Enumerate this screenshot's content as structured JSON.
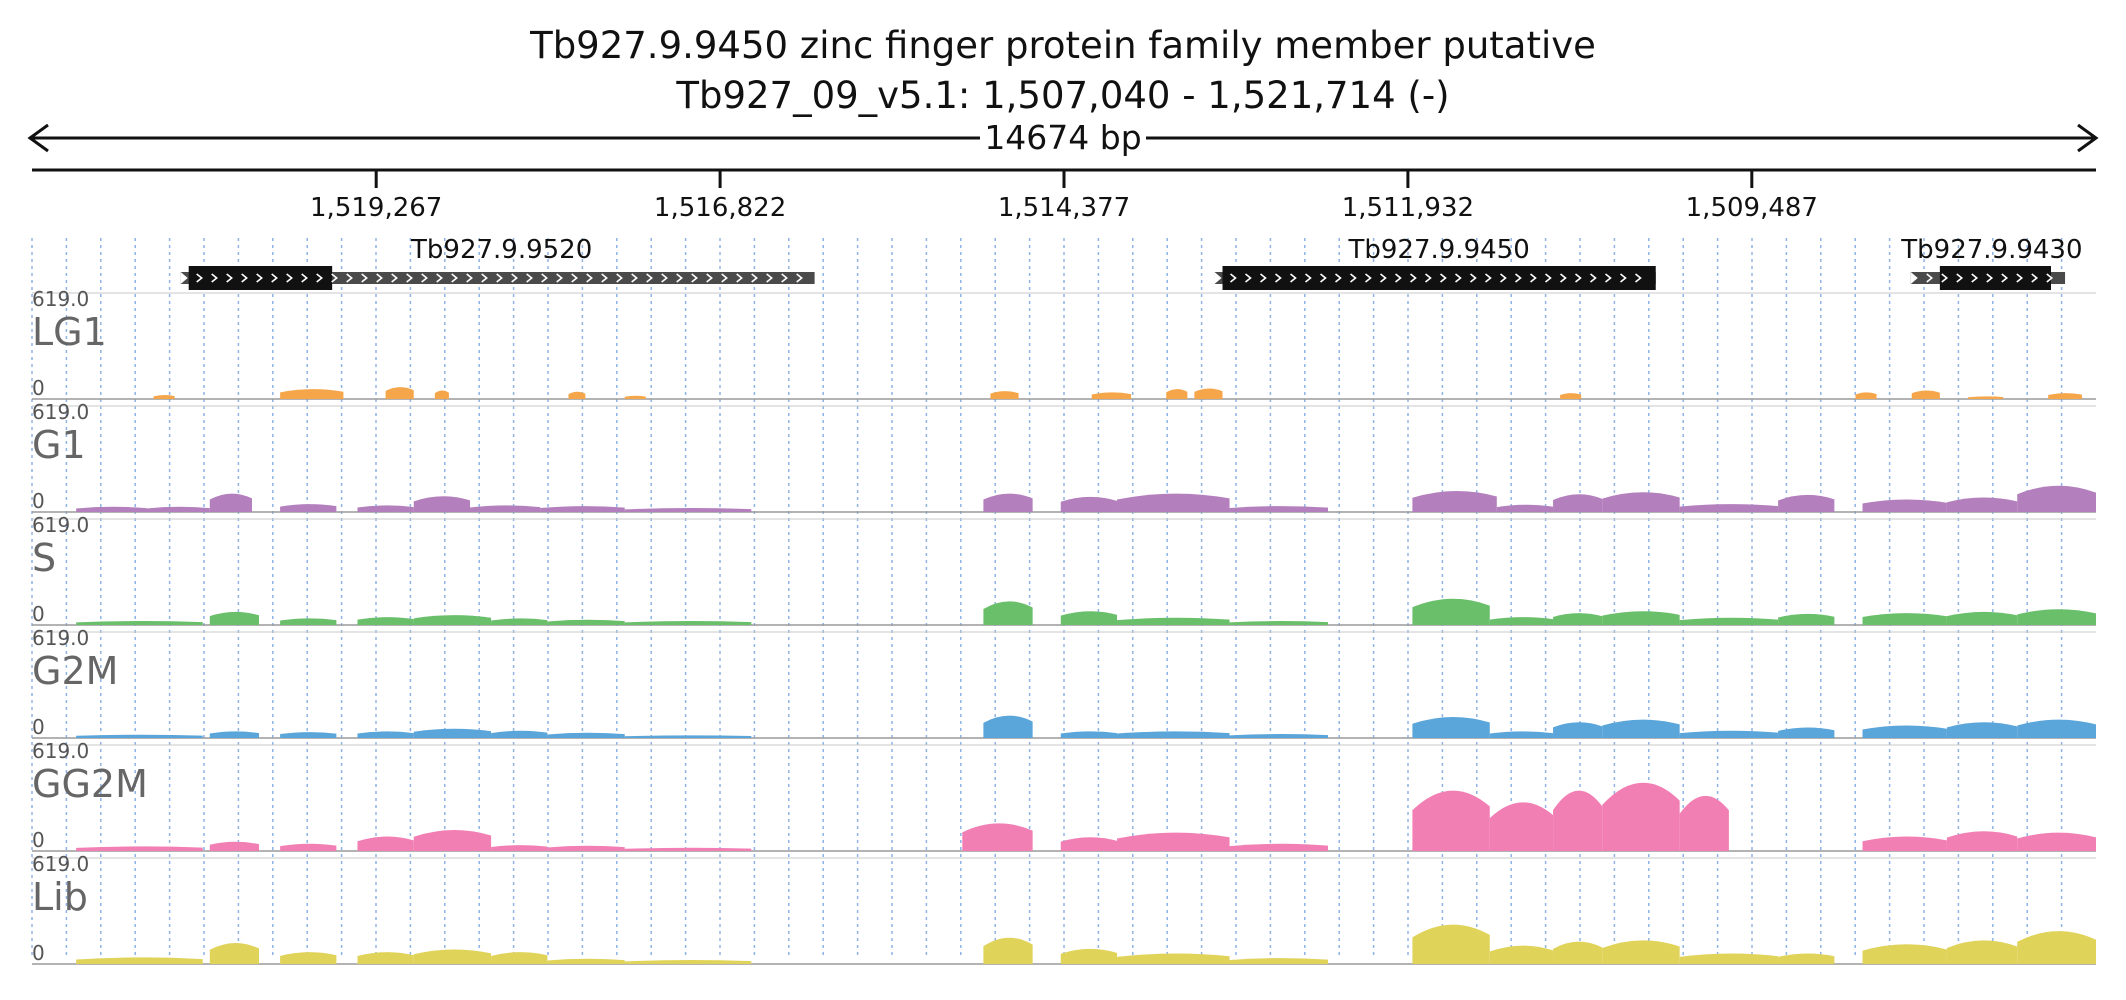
{
  "header": {
    "title_line1": "Tb927.9.9450  zinc finger protein family member  putative",
    "title_line2": "Tb927_09_v5.1: 1,507,040 - 1,521,714 (-)",
    "span_label": "14674 bp"
  },
  "chart_data": {
    "type": "area",
    "title": "Tb927.9.9450  zinc finger protein family member  putative",
    "subtitle": "Tb927_09_v5.1: 1,507,040 - 1,521,714 (-)",
    "region": {
      "chrom": "Tb927_09_v5.1",
      "start": 1507040,
      "end": 1521714,
      "strand": "-",
      "length_bp": 14674
    },
    "x_axis_reversed": true,
    "ruler_ticks": [
      "1,519,267",
      "1,516,822",
      "1,514,377",
      "1,511,932",
      "1,509,487"
    ],
    "ruler_tick_values": [
      1519267,
      1516822,
      1514377,
      1511932,
      1509487
    ],
    "genes": [
      {
        "name": "Tb927.9.9520",
        "start": 1520600,
        "end": 1516150,
        "cds_start": 1520600,
        "cds_end": 1519580
      },
      {
        "name": "Tb927.9.9450",
        "start": 1513250,
        "end": 1510170,
        "cds_start": 1513250,
        "cds_end": 1510170
      },
      {
        "name": "Tb927.9.9430",
        "start": 1508300,
        "end": 1507260,
        "cds_start": 1508150,
        "cds_end": 1507360
      }
    ],
    "y_range": [
      0,
      619.0
    ],
    "y_max_label": "619.0",
    "y_min_label": "0",
    "tracks": [
      {
        "name": "LG1",
        "color": "#f5a64a",
        "coverage": [
          [
            1520850,
            1520700,
            30
          ],
          [
            1519950,
            1519500,
            75
          ],
          [
            1519200,
            1519000,
            90
          ],
          [
            1518850,
            1518750,
            65
          ],
          [
            1517900,
            1517780,
            55
          ],
          [
            1517500,
            1517350,
            25
          ],
          [
            1514900,
            1514700,
            60
          ],
          [
            1514180,
            1513900,
            50
          ],
          [
            1513650,
            1513500,
            75
          ],
          [
            1513450,
            1513250,
            80
          ],
          [
            1510850,
            1510700,
            45
          ],
          [
            1508750,
            1508600,
            50
          ],
          [
            1508350,
            1508150,
            65
          ],
          [
            1507950,
            1507700,
            20
          ],
          [
            1507380,
            1507140,
            45
          ]
        ]
      },
      {
        "name": "G1",
        "color": "#b47fbd",
        "coverage": [
          [
            1521400,
            1520900,
            40
          ],
          [
            1520900,
            1520450,
            40
          ],
          [
            1520450,
            1520150,
            140
          ],
          [
            1519950,
            1519550,
            60
          ],
          [
            1519400,
            1519000,
            50
          ],
          [
            1519000,
            1518600,
            120
          ],
          [
            1518600,
            1518100,
            50
          ],
          [
            1518100,
            1517500,
            45
          ],
          [
            1517500,
            1516600,
            30
          ],
          [
            1514950,
            1514600,
            140
          ],
          [
            1514400,
            1514000,
            115
          ],
          [
            1514000,
            1513200,
            140
          ],
          [
            1513200,
            1512500,
            45
          ],
          [
            1511900,
            1511300,
            160
          ],
          [
            1511300,
            1510900,
            55
          ],
          [
            1510900,
            1510550,
            135
          ],
          [
            1510550,
            1510000,
            150
          ],
          [
            1510000,
            1509300,
            60
          ],
          [
            1509300,
            1508900,
            130
          ],
          [
            1508700,
            1508100,
            95
          ],
          [
            1508100,
            1507600,
            110
          ],
          [
            1507600,
            1507040,
            200
          ]
        ]
      },
      {
        "name": "S",
        "color": "#6abf6b",
        "coverage": [
          [
            1521400,
            1520500,
            30
          ],
          [
            1520450,
            1520100,
            100
          ],
          [
            1519950,
            1519550,
            50
          ],
          [
            1519400,
            1519000,
            60
          ],
          [
            1519000,
            1518450,
            75
          ],
          [
            1518450,
            1518050,
            50
          ],
          [
            1518050,
            1517500,
            40
          ],
          [
            1517500,
            1516600,
            30
          ],
          [
            1514950,
            1514600,
            180
          ],
          [
            1514400,
            1514000,
            105
          ],
          [
            1514000,
            1513200,
            55
          ],
          [
            1513200,
            1512500,
            30
          ],
          [
            1511900,
            1511350,
            200
          ],
          [
            1511350,
            1510900,
            60
          ],
          [
            1510900,
            1510550,
            90
          ],
          [
            1510550,
            1510000,
            105
          ],
          [
            1510000,
            1509300,
            55
          ],
          [
            1509300,
            1508900,
            85
          ],
          [
            1508700,
            1508100,
            90
          ],
          [
            1508100,
            1507600,
            100
          ],
          [
            1507600,
            1507040,
            120
          ]
        ]
      },
      {
        "name": "G2M",
        "color": "#5aa5da",
        "coverage": [
          [
            1521400,
            1520500,
            25
          ],
          [
            1520450,
            1520100,
            50
          ],
          [
            1519950,
            1519550,
            45
          ],
          [
            1519400,
            1519000,
            50
          ],
          [
            1519000,
            1518450,
            70
          ],
          [
            1518450,
            1518050,
            55
          ],
          [
            1518050,
            1517500,
            40
          ],
          [
            1517500,
            1516600,
            20
          ],
          [
            1514950,
            1514600,
            170
          ],
          [
            1514400,
            1514000,
            50
          ],
          [
            1514000,
            1513200,
            50
          ],
          [
            1513200,
            1512500,
            30
          ],
          [
            1511900,
            1511350,
            160
          ],
          [
            1511350,
            1510900,
            50
          ],
          [
            1510900,
            1510550,
            120
          ],
          [
            1510550,
            1510000,
            140
          ],
          [
            1510000,
            1509300,
            55
          ],
          [
            1509300,
            1508900,
            80
          ],
          [
            1508700,
            1508100,
            95
          ],
          [
            1508100,
            1507600,
            120
          ],
          [
            1507600,
            1507040,
            140
          ]
        ]
      },
      {
        "name": "GG2M",
        "color": "#f17fb4",
        "coverage": [
          [
            1521400,
            1520500,
            35
          ],
          [
            1520450,
            1520100,
            70
          ],
          [
            1519950,
            1519550,
            55
          ],
          [
            1519400,
            1519000,
            110
          ],
          [
            1519000,
            1518450,
            160
          ],
          [
            1518450,
            1518050,
            45
          ],
          [
            1518050,
            1517500,
            40
          ],
          [
            1517500,
            1516600,
            25
          ],
          [
            1515100,
            1514600,
            210
          ],
          [
            1514400,
            1514000,
            105
          ],
          [
            1514000,
            1513200,
            140
          ],
          [
            1513200,
            1512500,
            55
          ],
          [
            1511900,
            1511350,
            460
          ],
          [
            1511350,
            1510900,
            370
          ],
          [
            1510900,
            1510550,
            460
          ],
          [
            1510550,
            1510000,
            520
          ],
          [
            1510000,
            1509650,
            420
          ],
          [
            1508700,
            1508100,
            110
          ],
          [
            1508100,
            1507600,
            150
          ],
          [
            1507600,
            1507040,
            140
          ]
        ]
      },
      {
        "name": "Lib",
        "color": "#e0d35a",
        "coverage": [
          [
            1521400,
            1520500,
            50
          ],
          [
            1520450,
            1520100,
            160
          ],
          [
            1519950,
            1519550,
            90
          ],
          [
            1519400,
            1519000,
            90
          ],
          [
            1519000,
            1518450,
            110
          ],
          [
            1518450,
            1518050,
            90
          ],
          [
            1518050,
            1517500,
            40
          ],
          [
            1517500,
            1516600,
            30
          ],
          [
            1514950,
            1514600,
            200
          ],
          [
            1514400,
            1514000,
            115
          ],
          [
            1514000,
            1513200,
            80
          ],
          [
            1513200,
            1512500,
            45
          ],
          [
            1511900,
            1511350,
            300
          ],
          [
            1511350,
            1510900,
            140
          ],
          [
            1510900,
            1510550,
            170
          ],
          [
            1510550,
            1510000,
            180
          ],
          [
            1510000,
            1509300,
            80
          ],
          [
            1509300,
            1508900,
            80
          ],
          [
            1508700,
            1508100,
            150
          ],
          [
            1508100,
            1507600,
            180
          ],
          [
            1507600,
            1507040,
            250
          ]
        ]
      }
    ],
    "grid": true,
    "legend": "none"
  }
}
